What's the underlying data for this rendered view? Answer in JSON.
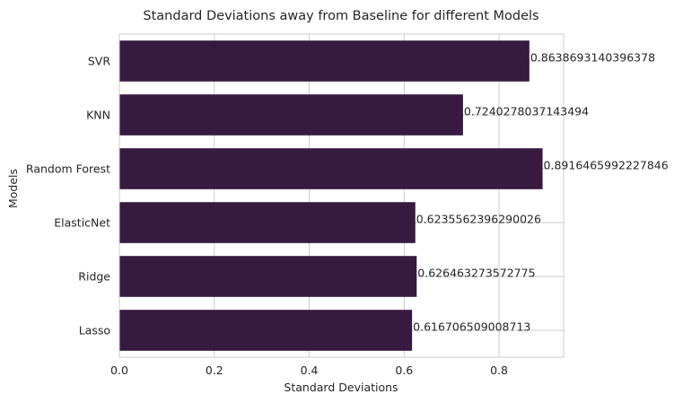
{
  "chart_data": {
    "type": "bar",
    "orientation": "horizontal",
    "title": "Standard Deviations away from Baseline for different Models",
    "xlabel": "Standard Deviations",
    "ylabel": "Models",
    "xlim": [
      0,
      0.936
    ],
    "x_ticks": [
      0.0,
      0.2,
      0.4,
      0.6,
      0.8
    ],
    "x_tick_labels": [
      "0.0",
      "0.2",
      "0.4",
      "0.6",
      "0.8"
    ],
    "categories": [
      "SVR",
      "KNN",
      "Random Forest",
      "ElasticNet",
      "Ridge",
      "Lasso"
    ],
    "values": [
      0.8638693140396378,
      0.7240278037143494,
      0.8916465992227846,
      0.6235562396290026,
      0.626463273572775,
      0.616706509008713
    ],
    "data_labels": [
      "0.8638693140396378",
      "0.7240278037143494",
      "0.8916465992227846",
      "0.6235562396290026",
      "0.626463273572775",
      "0.616706509008713"
    ],
    "bar_color": "#371a40",
    "grid": true,
    "legend": "none"
  }
}
